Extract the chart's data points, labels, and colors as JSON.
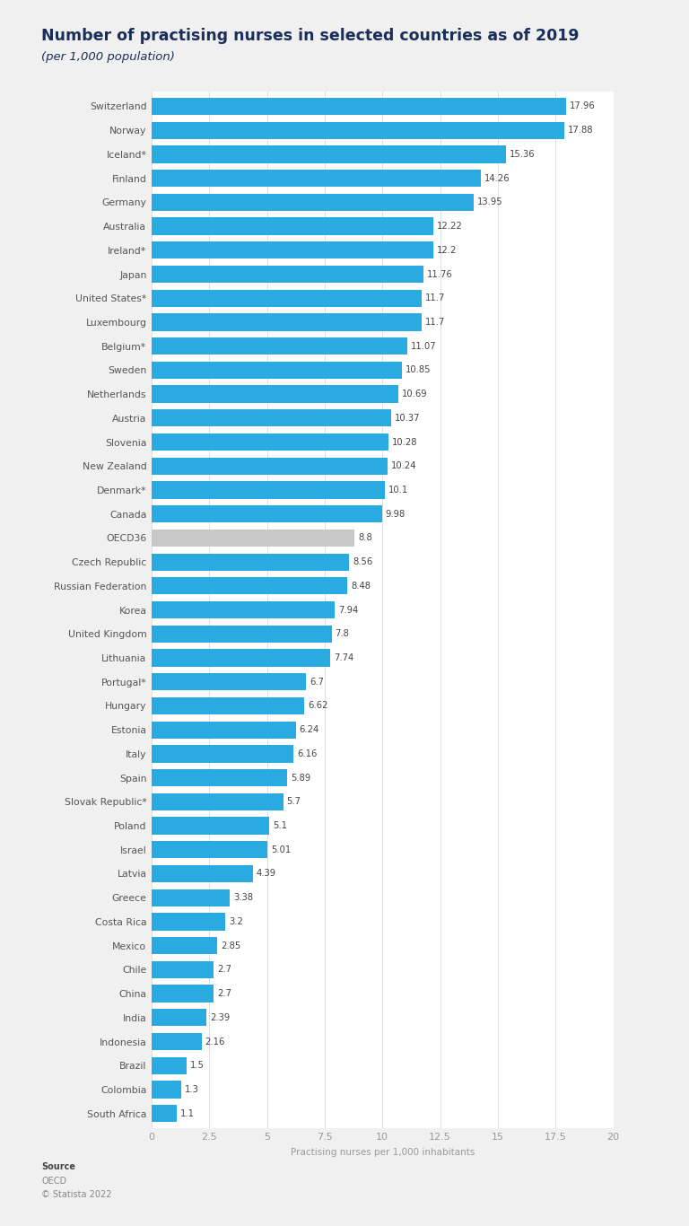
{
  "title": "Number of practising nurses in selected countries as of 2019",
  "subtitle": "(per 1,000 population)",
  "xlabel": "Practising nurses per 1,000 inhabitants",
  "categories": [
    "Switzerland",
    "Norway",
    "Iceland*",
    "Finland",
    "Germany",
    "Australia",
    "Ireland*",
    "Japan",
    "United States*",
    "Luxembourg",
    "Belgium*",
    "Sweden",
    "Netherlands",
    "Austria",
    "Slovenia",
    "New Zealand",
    "Denmark*",
    "Canada",
    "OECD36",
    "Czech Republic",
    "Russian Federation",
    "Korea",
    "United Kingdom",
    "Lithuania",
    "Portugal*",
    "Hungary",
    "Estonia",
    "Italy",
    "Spain",
    "Slovak Republic*",
    "Poland",
    "Israel",
    "Latvia",
    "Greece",
    "Costa Rica",
    "Mexico",
    "Chile",
    "China",
    "India",
    "Indonesia",
    "Brazil",
    "Colombia",
    "South Africa"
  ],
  "values": [
    17.96,
    17.88,
    15.36,
    14.26,
    13.95,
    12.22,
    12.2,
    11.76,
    11.7,
    11.7,
    11.07,
    10.85,
    10.69,
    10.37,
    10.28,
    10.24,
    10.1,
    9.98,
    8.8,
    8.56,
    8.48,
    7.94,
    7.8,
    7.74,
    6.7,
    6.62,
    6.24,
    6.16,
    5.89,
    5.7,
    5.1,
    5.01,
    4.39,
    3.38,
    3.2,
    2.85,
    2.7,
    2.7,
    2.39,
    2.16,
    1.5,
    1.3,
    1.1
  ],
  "bar_color": "#29abe2",
  "oecd_color": "#c8c8c8",
  "oecd_label": "OECD36",
  "bg_color": "#f0f0f0",
  "plot_bg_color": "#ffffff",
  "title_color": "#1a2e5a",
  "subtitle_color": "#1a2e5a",
  "label_color": "#555555",
  "value_color": "#444444",
  "xlim": [
    0,
    20
  ],
  "xticks": [
    0,
    2.5,
    5,
    7.5,
    10,
    12.5,
    15,
    17.5,
    20
  ],
  "source_line1": "Source",
  "source_line2": "OECD",
  "source_line3": "© Statista 2022"
}
